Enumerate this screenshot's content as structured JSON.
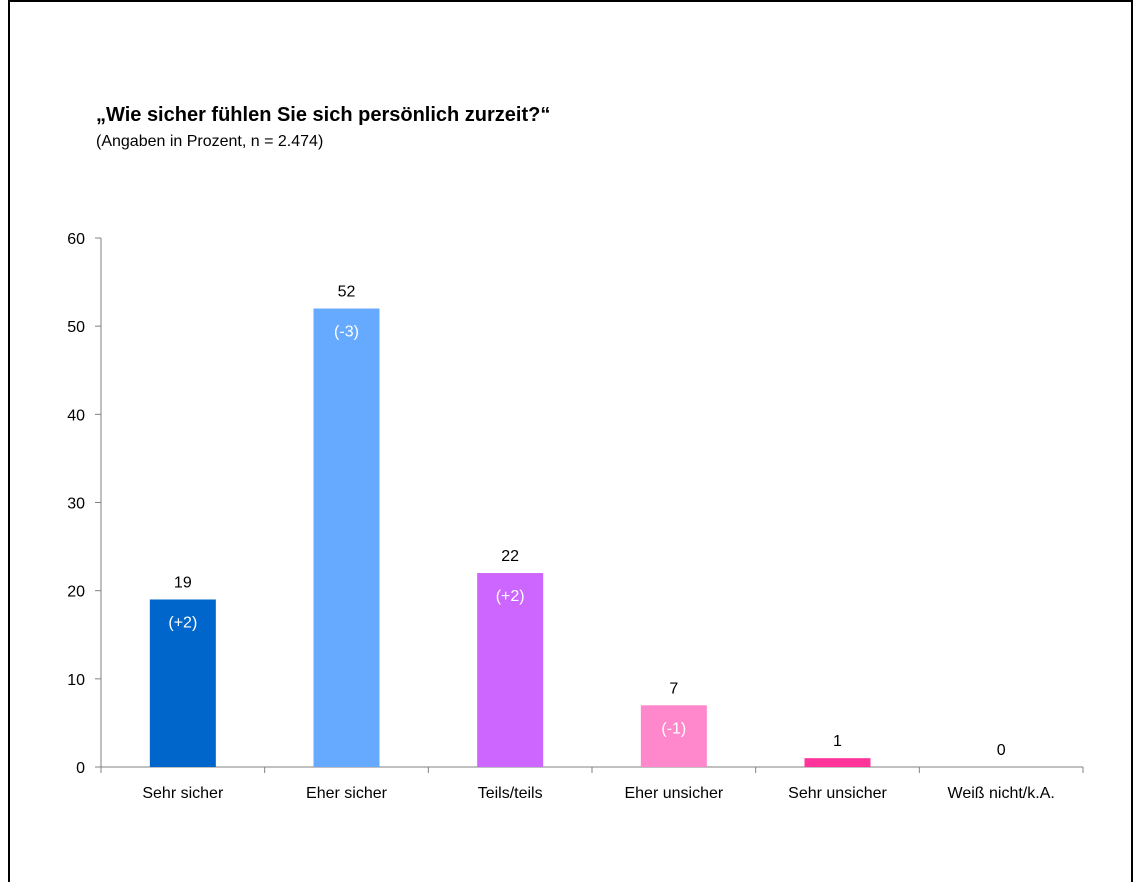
{
  "chart_data": {
    "type": "bar",
    "title": "„Wie sicher fühlen Sie sich persönlich zurzeit?“",
    "subtitle": "(Angaben in Prozent, n = 2.474)",
    "categories": [
      "Sehr sicher",
      "Eher sicher",
      "Teils/teils",
      "Eher unsicher",
      "Sehr unsicher",
      "Weiß nicht/k.A."
    ],
    "values": [
      19,
      52,
      22,
      7,
      1,
      0
    ],
    "value_labels": [
      "19",
      "52",
      "22",
      "7",
      "1",
      "0"
    ],
    "change_labels": [
      "(+2)",
      "(-3)",
      "(+2)",
      "(-1)",
      "",
      ""
    ],
    "colors": [
      "#0066CC",
      "#66AAFF",
      "#CC66FF",
      "#FF88CC",
      "#FF3399",
      "#FF3399"
    ],
    "ylim": [
      0,
      60
    ],
    "yticks": [
      0,
      10,
      20,
      30,
      40,
      50,
      60
    ],
    "grid": false,
    "xlabel": "",
    "ylabel": ""
  }
}
